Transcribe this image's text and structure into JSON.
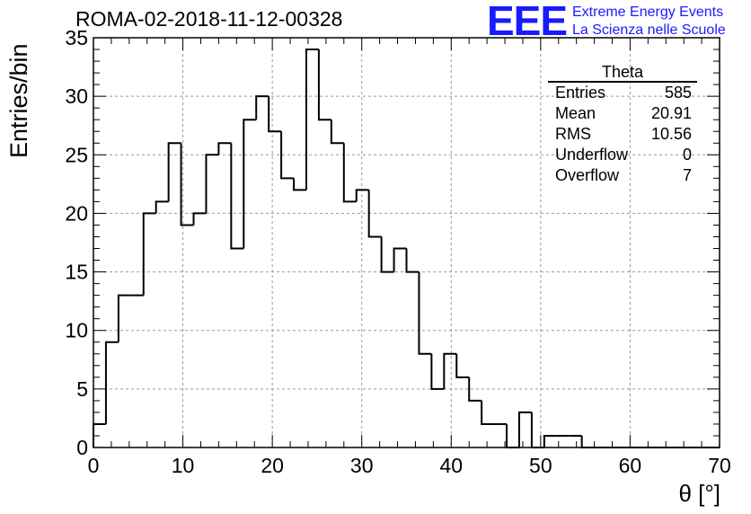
{
  "header": {
    "title": "ROMA-02-2018-11-12-00328",
    "logo": "EEE",
    "logo_line1": "Extreme Energy Events",
    "logo_line2": "La Scienza nelle Scuole"
  },
  "stats": {
    "title": "Theta",
    "rows": [
      {
        "label": "Entries",
        "value": "585"
      },
      {
        "label": "Mean",
        "value": "20.91"
      },
      {
        "label": "RMS",
        "value": "10.56"
      },
      {
        "label": "Underflow",
        "value": "0"
      },
      {
        "label": "Overflow",
        "value": "7"
      }
    ]
  },
  "chart_data": {
    "type": "bar",
    "title": "ROMA-02-2018-11-12-00328",
    "xlabel": "θ [°]",
    "ylabel": "Entries/bin",
    "xlim": [
      0,
      70
    ],
    "ylim": [
      0,
      35
    ],
    "bin_edges": [
      0,
      1.4,
      2.8,
      4.2,
      5.6,
      7.0,
      8.4,
      9.8,
      11.2,
      12.6,
      14.0,
      15.4,
      16.8,
      18.2,
      19.6,
      21.0,
      22.4,
      23.8,
      25.2,
      26.6,
      28.0,
      29.4,
      30.8,
      32.2,
      33.6,
      35.0,
      36.4,
      37.8,
      39.2,
      40.6,
      42.0,
      43.4,
      44.8,
      46.2,
      47.6,
      49.0,
      50.4,
      51.8,
      53.2,
      54.6,
      56.0,
      57.4,
      58.8,
      60.2,
      61.6,
      63.0,
      64.4,
      65.8,
      67.2,
      68.6,
      70.0
    ],
    "values": [
      2,
      9,
      13,
      13,
      20,
      21,
      26,
      19,
      20,
      25,
      26,
      17,
      28,
      30,
      27,
      23,
      22,
      34,
      28,
      26,
      21,
      22,
      18,
      15,
      17,
      15,
      8,
      5,
      8,
      6,
      4,
      2,
      2,
      0,
      3,
      0,
      1,
      1,
      1,
      0,
      0,
      0,
      0,
      0,
      0,
      0,
      0,
      0,
      0,
      0
    ],
    "xticks": [
      0,
      10,
      20,
      30,
      40,
      50,
      60,
      70
    ],
    "yticks": [
      0,
      5,
      10,
      15,
      20,
      25,
      30,
      35
    ],
    "grid": true,
    "colors": {
      "line": "#000000",
      "grid": "#999999",
      "logo": "#1a1aff"
    }
  }
}
